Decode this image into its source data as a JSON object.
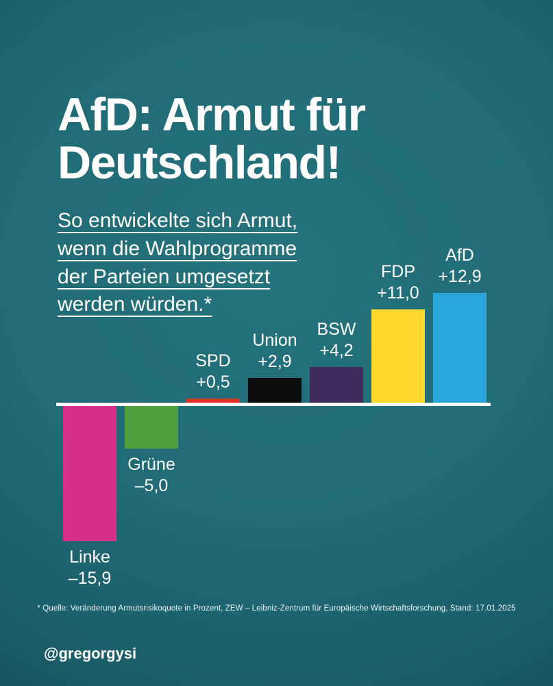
{
  "page": {
    "bg_center": "#26737d",
    "bg_edge": "#0b3540",
    "text_color": "#ffffff"
  },
  "header": {
    "title_line1": "AfD: Armut für",
    "title_line2": "Deutschland!",
    "subtitle_lines": [
      "So entwickelte sich Armut,",
      "wenn die Wahlprogramme",
      "der Parteien umgesetzt",
      "werden würden.*"
    ]
  },
  "footer": {
    "source": "* Quelle: Veränderung Armutsrisikoquote in Prozent, ZEW – Leibniz-Zentrum für Europäische Wirtschaftsforschung, Stand: 17.01.2025",
    "handle": "@gregorgysi"
  },
  "chart_data": {
    "type": "bar",
    "title": "AfD: Armut für Deutschland!",
    "subtitle": "So entwickelte sich Armut, wenn die Wahlprogramme der Parteien umgesetzt werden würden.*",
    "categories": [
      "Linke",
      "Grüne",
      "SPD",
      "Union",
      "BSW",
      "FDP",
      "AfD"
    ],
    "values": [
      -15.9,
      -5.0,
      0.5,
      2.9,
      4.2,
      11.0,
      12.9
    ],
    "value_labels": [
      "–15,9",
      "–5,0",
      "+0,5",
      "+2,9",
      "+4,2",
      "+11,0",
      "+12,9"
    ],
    "colors": [
      "#d62f8c",
      "#4f9f3c",
      "#e03127",
      "#0b0b0b",
      "#3f2a5c",
      "#ffd92e",
      "#2ba6db"
    ],
    "baseline": 0,
    "ylim": [
      -16.5,
      13.5
    ],
    "grid": false,
    "legend": false,
    "bar_label_position": "outside-end"
  }
}
